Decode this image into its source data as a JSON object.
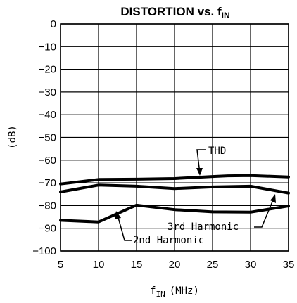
{
  "chart_data": {
    "type": "line",
    "title": "DISTORTION vs. f",
    "title_sub": "IN",
    "xlabel": "f",
    "xlabel_sub": "IN",
    "xlabel_unit": "(MHz)",
    "ylabel": "(dB)",
    "xlim": [
      5,
      35
    ],
    "ylim": [
      -100,
      0
    ],
    "x_ticks": [
      5,
      10,
      15,
      20,
      25,
      30,
      35
    ],
    "y_ticks": [
      0,
      -10,
      -20,
      -30,
      -40,
      -50,
      -60,
      -70,
      -80,
      -90,
      -100
    ],
    "x_tick_labels": [
      "5",
      "10",
      "15",
      "20",
      "25",
      "30",
      "35"
    ],
    "y_tick_labels": [
      "0",
      "−10",
      "−20",
      "−30",
      "−40",
      "−50",
      "−60",
      "−70",
      "−80",
      "−90",
      "−100"
    ],
    "grid": true,
    "series": [
      {
        "name": "THD",
        "stroke": "#000000",
        "x": [
          5,
          10,
          15,
          20,
          25,
          27,
          30,
          35
        ],
        "y": [
          -70.5,
          -68.5,
          -68.4,
          -68.1,
          -67.2,
          -66.9,
          -66.8,
          -67.4
        ]
      },
      {
        "name": "",
        "stroke": "#000000",
        "x": [
          5,
          10,
          15,
          20,
          25,
          30,
          35
        ],
        "y": [
          -74,
          -71,
          -71.5,
          -72.5,
          -71.8,
          -71.5,
          -74.5
        ]
      },
      {
        "name": "3rd Harmonic",
        "stroke": "#000000",
        "x": [
          5,
          10,
          15,
          20,
          25,
          30,
          35
        ],
        "y": [
          -74,
          -71,
          -71.5,
          -72.5,
          -71.8,
          -71.5,
          -74.5
        ]
      },
      {
        "name": "2nd Harmonic",
        "stroke": "#000000",
        "x": [
          5,
          10,
          15,
          20,
          25,
          30,
          35
        ],
        "y": [
          -86.5,
          -87.2,
          -79.8,
          -81.8,
          -82.8,
          -82.9,
          -80.2
        ]
      }
    ],
    "annotations": [
      {
        "label": "THD"
      },
      {
        "label": "3rd Harmonic"
      },
      {
        "label": "2nd Harmonic"
      }
    ]
  }
}
